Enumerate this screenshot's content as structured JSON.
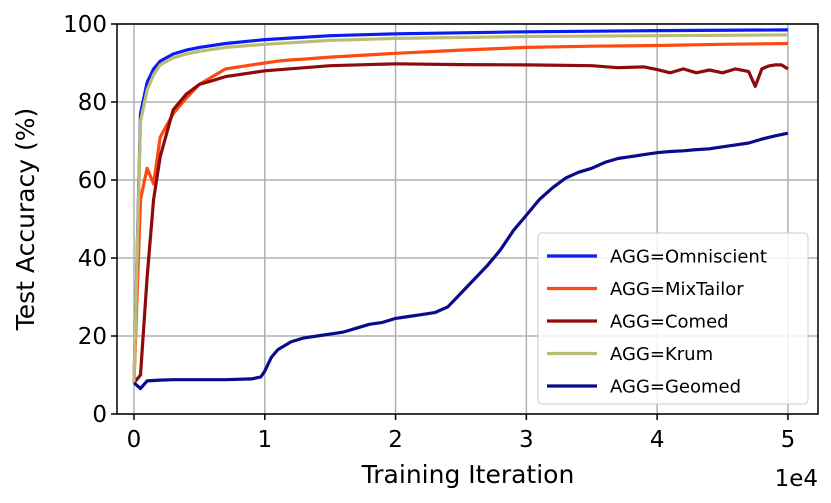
{
  "chart_data": {
    "type": "line",
    "xlabel": "Training Iteration",
    "ylabel": "Test Accuracy (%)",
    "x_offset_text": "1e4",
    "xlim": [
      -0.13,
      5.23
    ],
    "ylim": [
      0,
      100
    ],
    "xticks": [
      0,
      1,
      2,
      3,
      4,
      5
    ],
    "xtick_labels": [
      "0",
      "1",
      "2",
      "3",
      "4",
      "5"
    ],
    "yticks": [
      0,
      20,
      40,
      60,
      80,
      100
    ],
    "ytick_labels": [
      "0",
      "20",
      "40",
      "60",
      "80",
      "100"
    ],
    "grid": true,
    "legend_position": "lower-right",
    "series": [
      {
        "name": "AGG=Omniscient",
        "color": "#0b1cf2",
        "x": [
          0,
          0.05,
          0.1,
          0.15,
          0.2,
          0.3,
          0.4,
          0.5,
          0.7,
          1.0,
          1.5,
          2.0,
          3.0,
          4.0,
          5.0
        ],
        "y": [
          8,
          77,
          85,
          88.5,
          90.5,
          92.3,
          93.3,
          94,
          95,
          96,
          97,
          97.5,
          98,
          98.3,
          98.5
        ]
      },
      {
        "name": "AGG=MixTailor",
        "color": "#ff4a0f",
        "x": [
          0,
          0.05,
          0.1,
          0.15,
          0.2,
          0.3,
          0.4,
          0.5,
          0.6,
          0.7,
          0.8,
          0.9,
          1.0,
          1.1,
          1.2,
          1.3,
          1.5,
          2.0,
          2.5,
          3.0,
          3.5,
          4.0,
          4.5,
          5.0
        ],
        "y": [
          8,
          55,
          63,
          59,
          71,
          77,
          81,
          84.5,
          86.5,
          88.5,
          89,
          89.5,
          90,
          90.5,
          90.8,
          91,
          91.5,
          92.5,
          93.3,
          94,
          94.3,
          94.5,
          94.8,
          95
        ]
      },
      {
        "name": "AGG=Comed",
        "color": "#8f0a0a",
        "x": [
          0,
          0.05,
          0.1,
          0.15,
          0.2,
          0.3,
          0.4,
          0.5,
          0.6,
          0.7,
          0.8,
          1.0,
          1.5,
          2.0,
          2.5,
          3.0,
          3.5,
          3.7,
          3.9,
          4.0,
          4.1,
          4.2,
          4.3,
          4.4,
          4.5,
          4.6,
          4.7,
          4.75,
          4.8,
          4.85,
          4.9,
          4.95,
          5.0
        ],
        "y": [
          8,
          10,
          35,
          55,
          66,
          78,
          82,
          84.5,
          85.5,
          86.5,
          87,
          88,
          89.3,
          89.8,
          89.6,
          89.5,
          89.3,
          88.8,
          89,
          88.3,
          87.5,
          88.5,
          87.5,
          88.2,
          87.5,
          88.5,
          87.8,
          84,
          88.5,
          89.2,
          89.5,
          89.5,
          88.5
        ]
      },
      {
        "name": "AGG=Krum",
        "color": "#bcbd74",
        "x": [
          0,
          0.05,
          0.1,
          0.15,
          0.2,
          0.3,
          0.4,
          0.5,
          0.7,
          1.0,
          1.5,
          2.0,
          3.0,
          4.0,
          5.0
        ],
        "y": [
          8,
          75,
          83,
          87,
          89.5,
          91.3,
          92.3,
          93,
          94,
          94.8,
          95.8,
          96.3,
          96.8,
          97,
          97.2
        ]
      },
      {
        "name": "AGG=Geomed",
        "color": "#0a0a8c",
        "x": [
          0,
          0.05,
          0.1,
          0.2,
          0.3,
          0.5,
          0.7,
          0.9,
          0.97,
          1.0,
          1.05,
          1.1,
          1.2,
          1.3,
          1.4,
          1.5,
          1.6,
          1.7,
          1.8,
          1.9,
          2.0,
          2.1,
          2.2,
          2.3,
          2.4,
          2.5,
          2.6,
          2.7,
          2.8,
          2.9,
          3.0,
          3.1,
          3.2,
          3.3,
          3.4,
          3.5,
          3.6,
          3.7,
          3.8,
          3.9,
          4.0,
          4.1,
          4.2,
          4.3,
          4.4,
          4.5,
          4.6,
          4.7,
          4.8,
          4.9,
          5.0
        ],
        "y": [
          8,
          6.5,
          8.5,
          8.7,
          8.8,
          8.8,
          8.8,
          9,
          9.5,
          11,
          14.5,
          16.5,
          18.5,
          19.5,
          20,
          20.5,
          21,
          22,
          23,
          23.5,
          24.5,
          25,
          25.5,
          26,
          27.5,
          31,
          34.5,
          38,
          42,
          47,
          51,
          55,
          58,
          60.5,
          62,
          63,
          64.5,
          65.5,
          66,
          66.5,
          67,
          67.3,
          67.5,
          67.8,
          68,
          68.5,
          69,
          69.5,
          70.5,
          71.3,
          72
        ]
      }
    ]
  }
}
